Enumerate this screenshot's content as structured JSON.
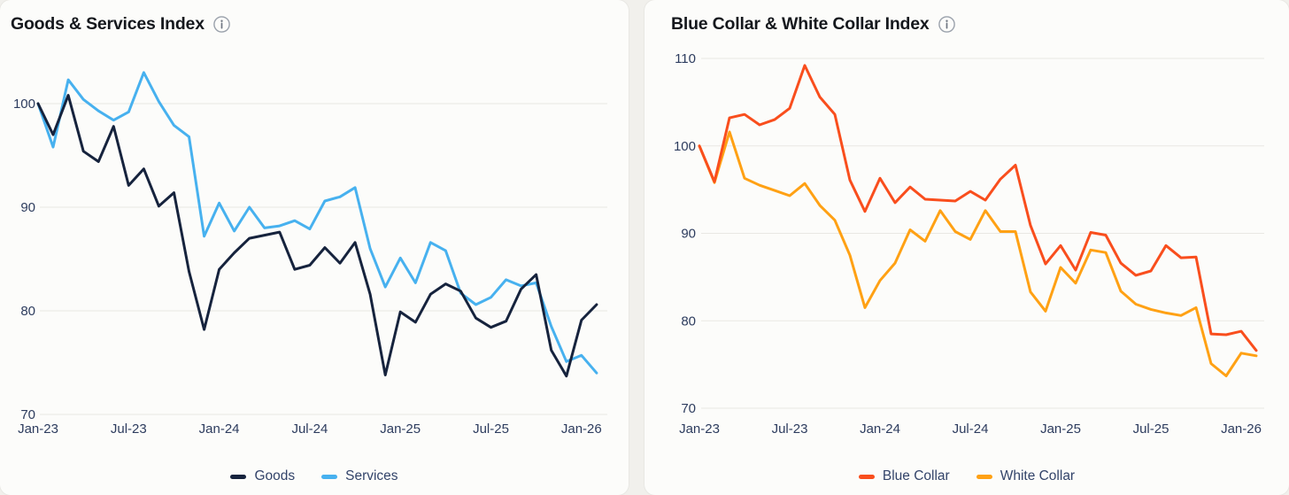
{
  "page": {
    "background": "#f1f0ec",
    "card_background": "#fcfcfa",
    "grid_color": "#e9e8e3",
    "axis_text_color": "#2d3c5e",
    "legend_text_color": "#33446a",
    "title_text_color": "#15181d",
    "info_icon": "info-icon"
  },
  "chart_data": [
    {
      "type": "line",
      "title": "Goods & Services Index",
      "x": [
        "Jan-23",
        "Feb-23",
        "Mar-23",
        "Apr-23",
        "May-23",
        "Jun-23",
        "Jul-23",
        "Aug-23",
        "Sep-23",
        "Oct-23",
        "Nov-23",
        "Dec-23",
        "Jan-24",
        "Feb-24",
        "Mar-24",
        "Apr-24",
        "May-24",
        "Jun-24",
        "Jul-24",
        "Aug-24",
        "Sep-24",
        "Oct-24",
        "Nov-24",
        "Dec-24",
        "Jan-25",
        "Feb-25",
        "Mar-25",
        "Apr-25",
        "May-25",
        "Jun-25",
        "Jul-25",
        "Aug-25",
        "Sep-25",
        "Oct-25",
        "Nov-25",
        "Dec-25",
        "Jan-26",
        "Feb-26"
      ],
      "x_tick_labels": [
        "Jan-23",
        "Jul-23",
        "Jan-24",
        "Jul-24",
        "Jan-25",
        "Jul-25",
        "Jan-26"
      ],
      "y_ticks": [
        70,
        80,
        90,
        100
      ],
      "ylim": [
        70,
        104
      ],
      "grid": true,
      "legend_position": "bottom",
      "series": [
        {
          "name": "Goods",
          "color": "#16233d",
          "values": [
            100,
            97,
            100.8,
            95.4,
            94.4,
            97.8,
            92.1,
            93.7,
            90.1,
            91.4,
            83.8,
            78.2,
            84,
            85.6,
            87,
            87.3,
            87.6,
            84,
            84.4,
            86.1,
            84.6,
            86.6,
            81.6,
            73.8,
            79.9,
            78.9,
            81.6,
            82.6,
            81.9,
            79.3,
            78.4,
            79,
            82.1,
            83.5,
            76.2,
            73.7,
            79.1,
            80.6
          ]
        },
        {
          "name": "Services",
          "color": "#47b1ef",
          "values": [
            100,
            95.8,
            102.3,
            100.4,
            99.3,
            98.4,
            99.2,
            103,
            100.2,
            97.9,
            96.8,
            87.2,
            90.4,
            87.7,
            90,
            88,
            88.2,
            88.7,
            87.9,
            90.6,
            91,
            91.9,
            86,
            82.3,
            85.1,
            82.7,
            86.6,
            85.8,
            81.7,
            80.6,
            81.3,
            83,
            82.4,
            82.7,
            78.5,
            75.1,
            75.7,
            74
          ]
        }
      ]
    },
    {
      "type": "line",
      "title": "Blue Collar & White Collar Index",
      "x": [
        "Jan-23",
        "Feb-23",
        "Mar-23",
        "Apr-23",
        "May-23",
        "Jun-23",
        "Jul-23",
        "Aug-23",
        "Sep-23",
        "Oct-23",
        "Nov-23",
        "Dec-23",
        "Jan-24",
        "Feb-24",
        "Mar-24",
        "Apr-24",
        "May-24",
        "Jun-24",
        "Jul-24",
        "Aug-24",
        "Sep-24",
        "Oct-24",
        "Nov-24",
        "Dec-24",
        "Jan-25",
        "Feb-25",
        "Mar-25",
        "Apr-25",
        "May-25",
        "Jun-25",
        "Jul-25",
        "Aug-25",
        "Sep-25",
        "Oct-25",
        "Nov-25",
        "Dec-25",
        "Jan-26",
        "Feb-26"
      ],
      "x_tick_labels": [
        "Jan-23",
        "Jul-23",
        "Jan-24",
        "Jul-24",
        "Jan-25",
        "Jul-25",
        "Jan-26"
      ],
      "y_ticks": [
        70,
        80,
        90,
        100,
        110
      ],
      "ylim": [
        70,
        110
      ],
      "grid": true,
      "legend_position": "bottom",
      "series": [
        {
          "name": "Blue Collar",
          "color": "#f94e1d",
          "values": [
            100,
            95.9,
            103.2,
            103.6,
            102.4,
            103,
            104.3,
            109.2,
            105.6,
            103.6,
            96.1,
            92.5,
            96.3,
            93.5,
            95.3,
            93.9,
            93.8,
            93.7,
            94.8,
            93.8,
            96.2,
            97.8,
            90.9,
            86.5,
            88.6,
            85.8,
            90.1,
            89.8,
            86.6,
            85.2,
            85.7,
            88.6,
            87.2,
            87.3,
            78.5,
            78.4,
            78.8,
            76.6
          ]
        },
        {
          "name": "White Collar",
          "color": "#ffa114",
          "values": [
            100,
            95.8,
            101.6,
            96.3,
            95.5,
            94.9,
            94.3,
            95.7,
            93.2,
            91.5,
            87.5,
            81.5,
            84.6,
            86.6,
            90.4,
            89.1,
            92.6,
            90.2,
            89.3,
            92.6,
            90.2,
            90.2,
            83.3,
            81.1,
            86.1,
            84.3,
            88.1,
            87.8,
            83.4,
            81.9,
            81.3,
            80.9,
            80.6,
            81.5,
            75.1,
            73.7,
            76.3,
            76
          ]
        }
      ]
    }
  ]
}
